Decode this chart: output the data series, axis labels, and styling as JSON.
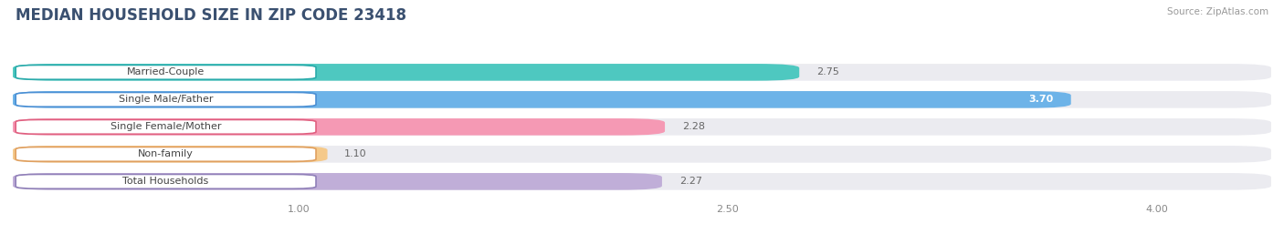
{
  "title": "MEDIAN HOUSEHOLD SIZE IN ZIP CODE 23418",
  "source": "Source: ZipAtlas.com",
  "categories": [
    "Married-Couple",
    "Single Male/Father",
    "Single Female/Mother",
    "Non-family",
    "Total Households"
  ],
  "values": [
    2.75,
    3.7,
    2.28,
    1.1,
    2.27
  ],
  "bar_colors": [
    "#4ec8c0",
    "#6db3e8",
    "#f599b4",
    "#f5c98a",
    "#c0aed8"
  ],
  "bar_edge_colors": [
    "#2aabab",
    "#4a8fd4",
    "#e06080",
    "#e0a060",
    "#9080b8"
  ],
  "label_border_colors": [
    "#2aabab",
    "#4a8fd4",
    "#e06080",
    "#e0a060",
    "#9080b8"
  ],
  "xmin": 0.0,
  "xlim_left": 0.0,
  "xlim_right": 4.4,
  "xticks": [
    1.0,
    2.5,
    4.0
  ],
  "xtick_labels": [
    "1.00",
    "2.50",
    "4.00"
  ],
  "background_color": "#ffffff",
  "bar_bg_color": "#ebebf0",
  "title_fontsize": 12,
  "label_fontsize": 8,
  "value_fontsize": 8,
  "bar_height": 0.62,
  "bar_gap": 0.18
}
